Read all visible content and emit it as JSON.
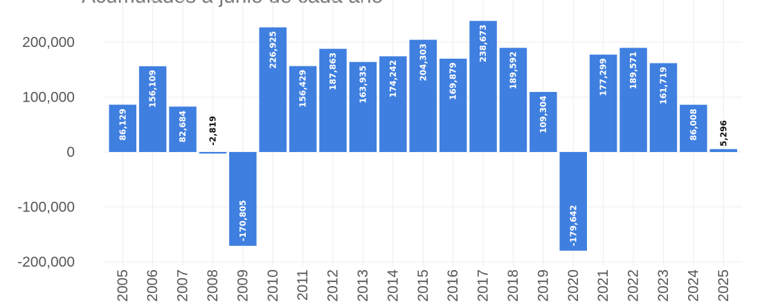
{
  "chart_data": {
    "type": "bar",
    "title": "Acumulados a junio de cada año",
    "xlabel": "",
    "ylabel": "",
    "categories": [
      "2005",
      "2006",
      "2007",
      "2008",
      "2009",
      "2010",
      "2011",
      "2012",
      "2013",
      "2014",
      "2015",
      "2016",
      "2017",
      "2018",
      "2019",
      "2020",
      "2021",
      "2022",
      "2023",
      "2024",
      "2025"
    ],
    "values": [
      86129,
      156109,
      82684,
      -2819,
      -170805,
      226925,
      156429,
      187863,
      163935,
      174242,
      204303,
      169879,
      238673,
      189592,
      109304,
      -179642,
      177299,
      189571,
      161719,
      86008,
      5296
    ],
    "data_labels": [
      "86,129",
      "156,109",
      "82,684",
      "-2,819",
      "-170,805",
      "226,925",
      "156,429",
      "187,863",
      "163,935",
      "174,242",
      "204,303",
      "169,879",
      "238,673",
      "189,592",
      "109,304",
      "-179,642",
      "177,299",
      "189,571",
      "161,719",
      "86,008",
      "5,296"
    ],
    "yticks": [
      200000,
      100000,
      0,
      -100000,
      -200000
    ],
    "ytick_labels": [
      "200,000",
      "100,000",
      "0",
      "-100,000",
      "-200,000"
    ],
    "ylim": [
      -200000,
      250000
    ],
    "grid": true,
    "legend": "none",
    "colors": {
      "bar": "#3f7fe0",
      "label_inside": "#ffffff",
      "label_outside": "#111111",
      "grid": "#ececec",
      "tick": "#555555"
    }
  }
}
